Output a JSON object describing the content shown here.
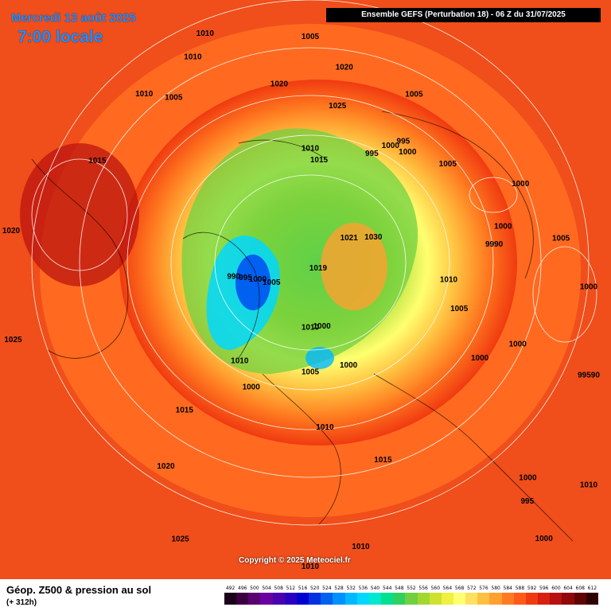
{
  "header": {
    "date": "Mercredi 13 août 2025",
    "time": "7:00 locale",
    "banner": "Ensemble GEFS (Perturbation 18) - 06 Z du 31/07/2025"
  },
  "footer": {
    "product": "Géop. Z500 & pression au sol",
    "lead_time": "(+ 312h)",
    "copyright": "Copyright © 2025 Meteociel.fr"
  },
  "scale": {
    "values": [
      "492",
      "496",
      "500",
      "504",
      "508",
      "512",
      "516",
      "520",
      "524",
      "528",
      "532",
      "536",
      "540",
      "544",
      "548",
      "552",
      "556",
      "560",
      "564",
      "568",
      "572",
      "576",
      "580",
      "584",
      "588",
      "592",
      "596",
      "600",
      "604",
      "608",
      "612"
    ],
    "colors": [
      "#1a001a",
      "#3c0040",
      "#5a0070",
      "#6a00a0",
      "#4b00b0",
      "#2a00c0",
      "#0000d0",
      "#0030e0",
      "#0060f0",
      "#0090ff",
      "#00b8ff",
      "#00d8ff",
      "#00e8d0",
      "#00e090",
      "#30d060",
      "#70d040",
      "#a0d830",
      "#d0e030",
      "#f0f040",
      "#ffff70",
      "#ffe060",
      "#ffc040",
      "#ffa030",
      "#ff7a20",
      "#ff5a18",
      "#f03a10",
      "#d82010",
      "#b81010",
      "#900808",
      "#600404",
      "#300000"
    ]
  },
  "pressure_labels": [
    {
      "text": "1005",
      "lon": 180,
      "lat": 50
    },
    {
      "text": "1020",
      "lon": 170,
      "lat": 55
    },
    {
      "text": "1025",
      "lon": 170,
      "lat": 62
    },
    {
      "text": "1005",
      "lon": 148,
      "lat": 55
    },
    {
      "text": "1000",
      "lon": 145,
      "lat": 65
    },
    {
      "text": "995",
      "lon": 142,
      "lat": 63
    },
    {
      "text": "1000",
      "lon": 138,
      "lat": 64
    },
    {
      "text": "995",
      "lon": 150,
      "lat": 68
    },
    {
      "text": "1005",
      "lon": 125,
      "lat": 60
    },
    {
      "text": "1000",
      "lon": 110,
      "lat": 50
    },
    {
      "text": "1000",
      "lon": 100,
      "lat": 55
    },
    {
      "text": "9990",
      "lon": 95,
      "lat": 57
    },
    {
      "text": "1005",
      "lon": 95,
      "lat": 45
    },
    {
      "text": "1000",
      "lon": 85,
      "lat": 35
    },
    {
      "text": "99590",
      "lon": 70,
      "lat": 30
    },
    {
      "text": "1010",
      "lon": 180,
      "lat": 70
    },
    {
      "text": "1021",
      "lon": 120,
      "lat": 82
    },
    {
      "text": "1030",
      "lon": 110,
      "lat": 78
    },
    {
      "text": "1010",
      "lon": 82,
      "lat": 65
    },
    {
      "text": "1005",
      "lon": 72,
      "lat": 62
    },
    {
      "text": "1000",
      "lon": 68,
      "lat": 50
    },
    {
      "text": "1000",
      "lon": 60,
      "lat": 55
    },
    {
      "text": "1000",
      "lon": 45,
      "lat": 35
    },
    {
      "text": "995",
      "lon": 42,
      "lat": 32
    },
    {
      "text": "1019",
      "lon": 45,
      "lat": 88
    },
    {
      "text": "1000",
      "lon": 20,
      "lat": 70
    },
    {
      "text": "1000",
      "lon": 10,
      "lat": 78
    },
    {
      "text": "1010",
      "lon": 0,
      "lat": 78
    },
    {
      "text": "1005",
      "lon": 0,
      "lat": 70
    },
    {
      "text": "1010",
      "lon": 5,
      "lat": 60
    },
    {
      "text": "1015",
      "lon": 20,
      "lat": 52
    },
    {
      "text": "1000",
      "lon": 40,
      "lat": 25
    },
    {
      "text": "1010",
      "lon": 10,
      "lat": 38
    },
    {
      "text": "1010",
      "lon": 0,
      "lat": 30
    },
    {
      "text": "1010",
      "lon": 55,
      "lat": 20
    },
    {
      "text": "1005",
      "lon": -60,
      "lat": 82
    },
    {
      "text": "1000",
      "lon": -70,
      "lat": 80
    },
    {
      "text": "995",
      "lon": -75,
      "lat": 78
    },
    {
      "text": "990",
      "lon": -78,
      "lat": 76
    },
    {
      "text": "1010",
      "lon": -35,
      "lat": 68
    },
    {
      "text": "1000",
      "lon": -25,
      "lat": 65
    },
    {
      "text": "1015",
      "lon": -40,
      "lat": 55
    },
    {
      "text": "1020",
      "lon": -35,
      "lat": 45
    },
    {
      "text": "1025",
      "lon": -25,
      "lat": 35
    },
    {
      "text": "1015",
      "lon": 175,
      "lat": 72
    },
    {
      "text": "1020",
      "lon": -170,
      "lat": 58
    },
    {
      "text": "1010",
      "lon": -150,
      "lat": 48
    },
    {
      "text": "1005",
      "lon": -140,
      "lat": 52
    },
    {
      "text": "1010",
      "lon": -135,
      "lat": 48
    },
    {
      "text": "1015",
      "lon": -115,
      "lat": 48
    },
    {
      "text": "1020",
      "lon": -95,
      "lat": 30
    },
    {
      "text": "1025",
      "lon": -75,
      "lat": 35
    },
    {
      "text": "1010",
      "lon": -160,
      "lat": 35
    }
  ]
}
